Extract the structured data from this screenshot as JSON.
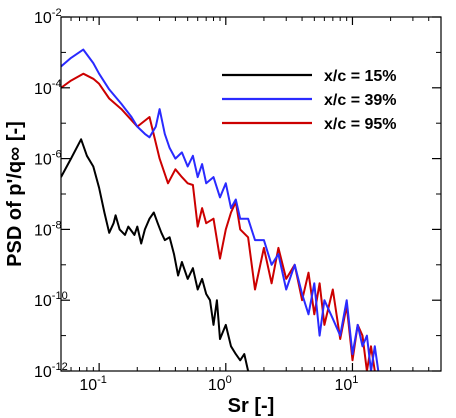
{
  "chart_data": {
    "type": "line",
    "title": "",
    "xlabel": "Sr [-]",
    "ylabel": "PSD of p'/q∞ [-]",
    "xscale": "log",
    "yscale": "log",
    "xlim": [
      0.05,
      50
    ],
    "ylim": [
      1e-12,
      0.01
    ],
    "grid": false,
    "legend_position": "top-right",
    "x_ticks": [
      {
        "value": 0.1,
        "base": "10",
        "exp": "-1"
      },
      {
        "value": 1,
        "base": "10",
        "exp": "0"
      },
      {
        "value": 10,
        "base": "10",
        "exp": "1"
      }
    ],
    "y_ticks": [
      {
        "value": 1e-12,
        "base": "10",
        "exp": "-12"
      },
      {
        "value": 1e-10,
        "base": "10",
        "exp": "-10"
      },
      {
        "value": 1e-08,
        "base": "10",
        "exp": "-8"
      },
      {
        "value": 1e-06,
        "base": "10",
        "exp": "-6"
      },
      {
        "value": 0.0001,
        "base": "10",
        "exp": "-4"
      },
      {
        "value": 0.01,
        "base": "10",
        "exp": "-2"
      }
    ],
    "series": [
      {
        "name": "x/c = 15%",
        "color": "#000000",
        "x": [
          0.05,
          0.06,
          0.072,
          0.08,
          0.09,
          0.1,
          0.11,
          0.12,
          0.13,
          0.135,
          0.145,
          0.16,
          0.17,
          0.19,
          0.2,
          0.215,
          0.23,
          0.25,
          0.27,
          0.29,
          0.31,
          0.33,
          0.36,
          0.39,
          0.42,
          0.45,
          0.5,
          0.55,
          0.6,
          0.65,
          0.7,
          0.75,
          0.8,
          0.85,
          0.9,
          1.0,
          1.1,
          1.2,
          1.3,
          1.4,
          1.5
        ],
        "y": [
          3e-07,
          1e-06,
          3.5e-06,
          1.2e-06,
          6e-07,
          1.5e-07,
          3e-08,
          8e-09,
          1.5e-08,
          2.5e-08,
          1e-08,
          7e-09,
          1.2e-08,
          7e-09,
          1.2e-08,
          4e-09,
          1e-08,
          2e-08,
          3e-08,
          1.5e-08,
          8e-09,
          5e-09,
          6e-09,
          2e-09,
          5e-10,
          1.2e-09,
          4e-10,
          8e-10,
          2e-10,
          4e-10,
          1.5e-10,
          1e-10,
          2e-11,
          1e-10,
          8e-12,
          2e-11,
          5e-12,
          3e-12,
          2e-12,
          3e-12,
          1e-12
        ]
      },
      {
        "name": "x/c = 39%",
        "color": "#2a2aff",
        "x": [
          0.05,
          0.06,
          0.075,
          0.09,
          0.1,
          0.12,
          0.15,
          0.18,
          0.2,
          0.23,
          0.25,
          0.28,
          0.3,
          0.33,
          0.36,
          0.4,
          0.45,
          0.5,
          0.55,
          0.6,
          0.65,
          0.7,
          0.8,
          0.9,
          1.0,
          1.1,
          1.2,
          1.3,
          1.5,
          1.7,
          2.0,
          2.3,
          2.6,
          3.0,
          3.5,
          4.0,
          4.5,
          5.0,
          5.5,
          6.0,
          7.0,
          8.0,
          9.0,
          10.0,
          11.0,
          12.0,
          13.0,
          14.0,
          15.0,
          16.0
        ],
        "y": [
          0.0004,
          0.0007,
          0.0012,
          0.0005,
          0.00025,
          9e-05,
          3.5e-05,
          1.5e-05,
          8e-06,
          5e-06,
          4e-06,
          8e-06,
          2.5e-05,
          5e-06,
          2e-06,
          1e-06,
          1.5e-06,
          6e-07,
          1.2e-06,
          3e-07,
          7e-07,
          2e-07,
          3e-07,
          8e-08,
          2e-07,
          4e-08,
          7e-08,
          2e-08,
          2e-08,
          5e-09,
          5e-09,
          1e-09,
          2e-09,
          2e-10,
          1e-09,
          1.5e-10,
          4e-11,
          3e-10,
          1e-11,
          1e-10,
          3e-11,
          1e-11,
          1e-10,
          3e-12,
          2e-11,
          5e-12,
          1e-11,
          1e-12,
          5e-12,
          1e-12
        ]
      },
      {
        "name": "x/c = 95%",
        "color": "#cc0000",
        "x": [
          0.05,
          0.06,
          0.075,
          0.09,
          0.1,
          0.12,
          0.15,
          0.2,
          0.25,
          0.3,
          0.35,
          0.4,
          0.45,
          0.5,
          0.55,
          0.6,
          0.65,
          0.7,
          0.8,
          0.9,
          1.0,
          1.1,
          1.2,
          1.3,
          1.5,
          1.7,
          2.0,
          2.3,
          2.6,
          3.0,
          3.5,
          4.0,
          4.5,
          5.0,
          5.5,
          6.0,
          7.0,
          8.0,
          9.0,
          10.0,
          11.0,
          12.0,
          13.0,
          14.0,
          15.0
        ],
        "y": [
          0.0001,
          0.00016,
          0.00025,
          0.00018,
          0.00013,
          5e-05,
          2.5e-05,
          8e-06,
          1.5e-05,
          1e-06,
          2e-07,
          5e-07,
          3e-07,
          2e-07,
          1.8e-07,
          1.2e-08,
          4e-08,
          1.5e-08,
          2e-08,
          1.5e-09,
          1e-08,
          3e-08,
          6e-08,
          1e-08,
          6e-09,
          2e-10,
          3e-09,
          3e-10,
          3e-09,
          4e-10,
          1e-09,
          1e-10,
          6e-10,
          4e-11,
          3e-10,
          2e-11,
          2e-10,
          8e-12,
          7e-11,
          2e-12,
          2e-11,
          1e-11,
          1e-12,
          5e-12,
          1e-12
        ]
      }
    ]
  }
}
